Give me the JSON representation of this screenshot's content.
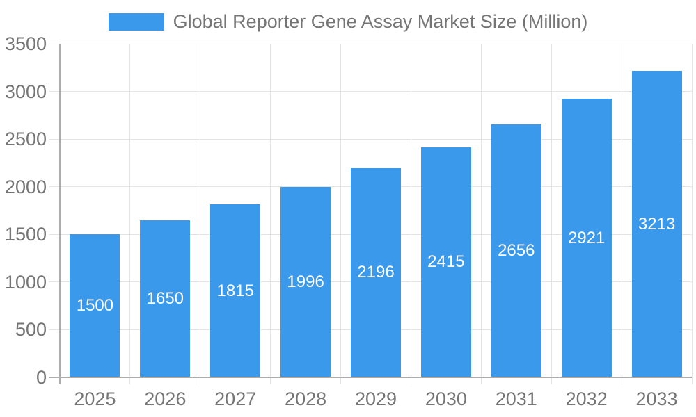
{
  "chart_data": {
    "type": "bar",
    "title": "Global Reporter Gene Assay Market Size (Million)",
    "categories": [
      "2025",
      "2026",
      "2027",
      "2028",
      "2029",
      "2030",
      "2031",
      "2032",
      "2033"
    ],
    "values": [
      1500,
      1650,
      1815,
      1996,
      2196,
      2415,
      2656,
      2921,
      3213
    ],
    "series_name": "Global Reporter Gene Assay Market Size (Million)",
    "xlabel": "",
    "ylabel": "",
    "ylim": [
      0,
      3500
    ],
    "yticks": [
      0,
      500,
      1000,
      1500,
      2000,
      2500,
      3000,
      3500
    ],
    "grid": true,
    "legend_position": "top-center",
    "bar_color": "#3B99EC",
    "bar_value_label_color": "#FFFFFF",
    "axis_text_color": "#757575",
    "grid_color": "#E3E3E3",
    "axis_line_color": "#ACACAC",
    "background_color": "#FFFFFF"
  }
}
